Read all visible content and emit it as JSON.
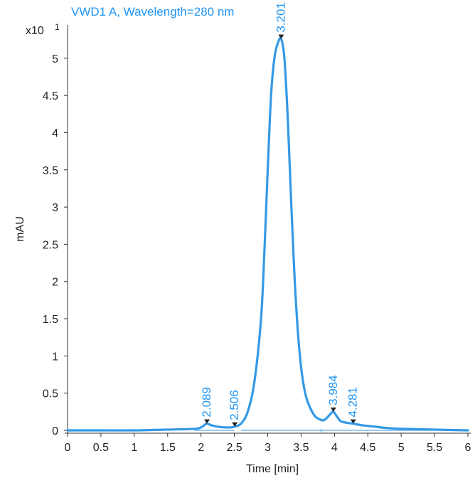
{
  "chart_data": {
    "type": "line",
    "title": "VWD1 A, Wavelength=280 nm",
    "xlabel": "Time [min]",
    "ylabel": "mAU",
    "y_multiplier_label": "x10",
    "y_multiplier_exponent": "1",
    "xlim": [
      0,
      6
    ],
    "ylim": [
      0,
      5.4
    ],
    "xticks": [
      "0",
      "0.5",
      "1",
      "1.5",
      "2",
      "2.5",
      "3",
      "3.5",
      "4",
      "4.5",
      "5",
      "5.5",
      "6"
    ],
    "yticks": [
      "0",
      "0.5",
      "1",
      "1.5",
      "2",
      "2.5",
      "3",
      "3.5",
      "4",
      "4.5",
      "5"
    ],
    "colors": {
      "trace": "#3399e6",
      "label": "#2196f3",
      "marker": "#222222",
      "baseline": "#5aa9e8"
    },
    "peaks": [
      {
        "label": "2.089",
        "x": 2.089,
        "y": 0.09
      },
      {
        "label": "2.506",
        "x": 2.506,
        "y": 0.05
      },
      {
        "label": "3.201",
        "x": 3.201,
        "y": 5.26
      },
      {
        "label": "3.984",
        "x": 3.984,
        "y": 0.25
      },
      {
        "label": "4.281",
        "x": 4.281,
        "y": 0.09
      }
    ],
    "series": [
      {
        "x": [
          0.0,
          0.5,
          1.0,
          1.5,
          1.9,
          2.0,
          2.05,
          2.089,
          2.15,
          2.25,
          2.35,
          2.45,
          2.506,
          2.6,
          2.7,
          2.8,
          2.9,
          2.95,
          3.0,
          3.05,
          3.1,
          3.15,
          3.201,
          3.25,
          3.3,
          3.35,
          3.4,
          3.45,
          3.5,
          3.55,
          3.6,
          3.7,
          3.8,
          3.85,
          3.9,
          3.95,
          3.984,
          4.05,
          4.1,
          4.2,
          4.281,
          4.4,
          4.6,
          4.8,
          5.0,
          5.5,
          6.0
        ],
        "y": [
          0.0,
          0.0,
          0.0,
          0.01,
          0.02,
          0.04,
          0.07,
          0.09,
          0.07,
          0.05,
          0.04,
          0.04,
          0.05,
          0.09,
          0.25,
          0.65,
          1.5,
          2.4,
          3.5,
          4.5,
          5.0,
          5.2,
          5.26,
          5.0,
          4.2,
          3.1,
          2.1,
          1.35,
          0.85,
          0.55,
          0.38,
          0.2,
          0.14,
          0.14,
          0.18,
          0.23,
          0.25,
          0.17,
          0.12,
          0.1,
          0.09,
          0.07,
          0.05,
          0.03,
          0.02,
          0.01,
          0.0
        ]
      }
    ],
    "baseline_segments": [
      {
        "x": [
          1.9,
          2.5
        ]
      },
      {
        "x": [
          2.6,
          3.8
        ]
      },
      {
        "x": [
          3.8,
          4.0
        ]
      },
      {
        "x": [
          4.0,
          6.0
        ]
      }
    ],
    "grid": false
  }
}
